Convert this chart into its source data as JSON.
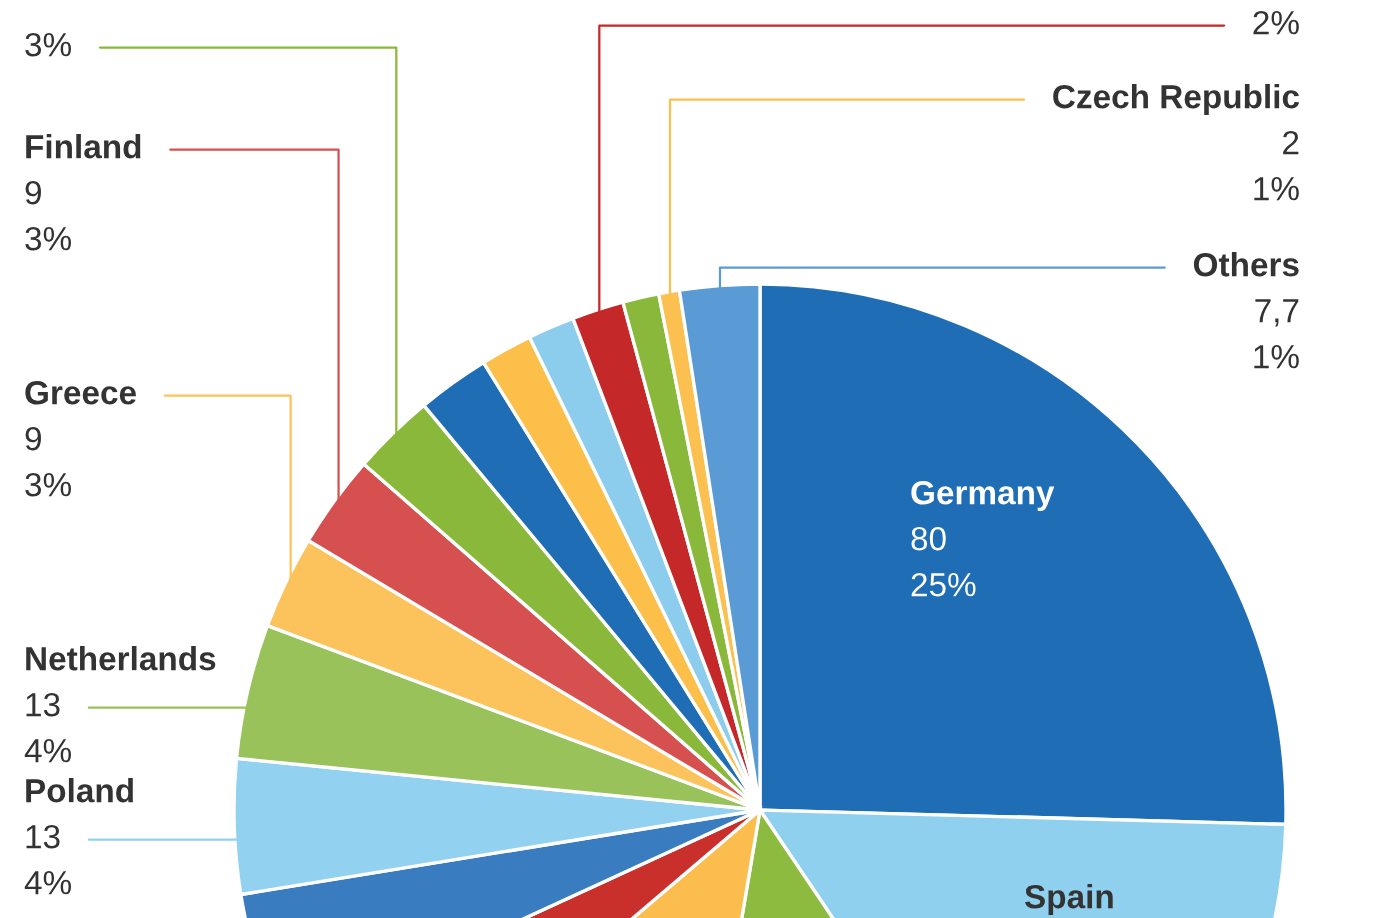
{
  "chart_data": {
    "type": "pie",
    "categories": [
      "Germany",
      "Spain",
      null,
      null,
      null,
      null,
      "Poland",
      "Netherlands",
      "Greece",
      "Finland",
      null,
      null,
      null,
      null,
      null,
      null,
      "Czech Republic",
      "Others"
    ],
    "values": [
      80,
      47.6,
      38,
      35,
      13.7,
      13.5,
      13,
      13,
      9,
      9,
      8,
      7,
      5,
      4.5,
      5,
      3.5,
      2,
      7.7
    ],
    "colors": [
      "#1f6db5",
      "#8fd0ef",
      "#8dbb3f",
      "#fbbe4e",
      "#c9302c",
      "#3a7cc0",
      "#92d2f0",
      "#99c25a",
      "#fcc35c",
      "#d65050",
      "#8ab83a",
      "#1f6db5",
      "#fbbf4a",
      "#8ccdee",
      "#c42828",
      "#8ab83a",
      "#fbc04f",
      "#5b9bd5"
    ],
    "value_labels": [
      "80\n25%",
      null,
      null,
      null,
      null,
      null,
      "13\n4%",
      "13\n4%",
      "9\n3%",
      "9\n3%",
      null,
      null,
      null,
      null,
      null,
      null,
      "2\n1%",
      "7,7\n1%"
    ],
    "annotations": [
      "3%",
      "2%"
    ]
  }
}
